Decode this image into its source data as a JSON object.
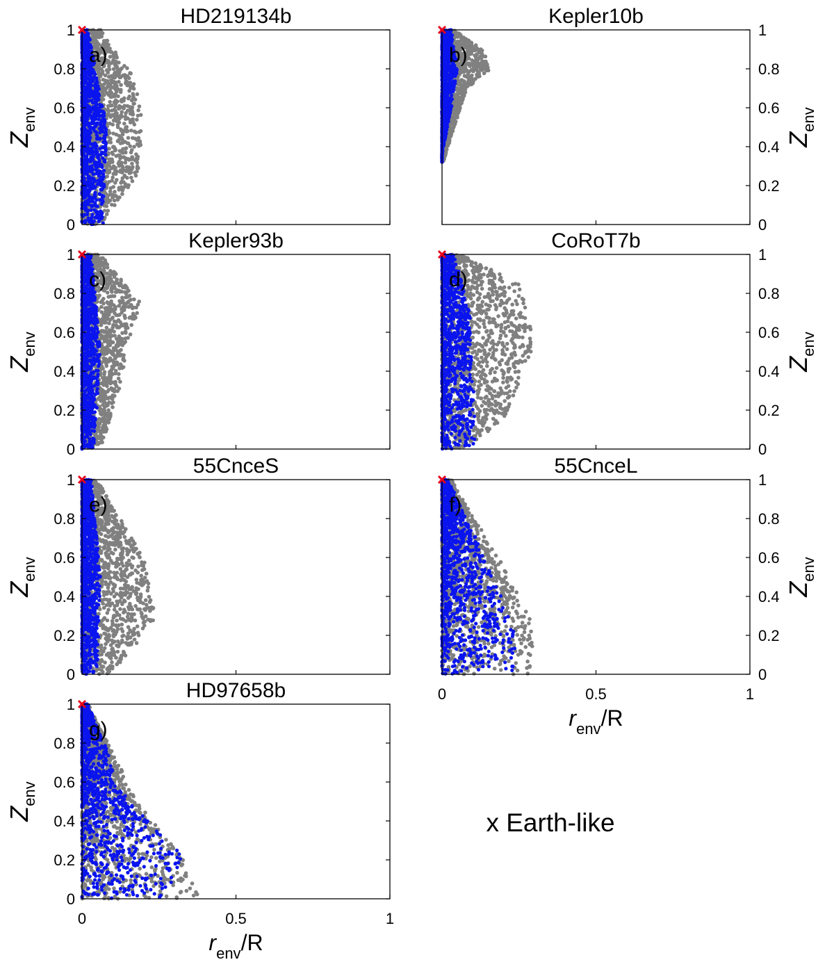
{
  "legend": {
    "text": "x Earth-like",
    "color": "#e8001c"
  },
  "colors": {
    "all_samples": "#808080",
    "constrained_samples": "#0a14ee",
    "marker": "#e8001c"
  },
  "axis_common": {
    "ylabel_main": "Z",
    "ylabel_sub": "env",
    "xlabel_main": "r",
    "xlabel_sub": "env",
    "xlabel_tail": "/R",
    "xlim": [
      0,
      1
    ],
    "ylim": [
      0,
      1
    ],
    "xticks": [
      "0",
      "0.5",
      "1"
    ],
    "yticks": [
      "0",
      "0.2",
      "0.4",
      "0.6",
      "0.8",
      "1"
    ]
  },
  "chart_data": [
    {
      "type": "scatter",
      "title": "HD219134b",
      "panel_label": "a)",
      "earth_like": [
        0,
        1
      ],
      "envelope": {
        "ymin": 0.0,
        "grey": [
          [
            0,
            0.06
          ],
          [
            0.25,
            0.18
          ],
          [
            0.5,
            0.2
          ],
          [
            0.75,
            0.17
          ],
          [
            1,
            0.06
          ]
        ],
        "blue": [
          [
            0,
            0.07
          ],
          [
            0.5,
            0.08
          ],
          [
            1,
            0.02
          ]
        ]
      }
    },
    {
      "type": "scatter",
      "title": "Kepler10b",
      "panel_label": "b)",
      "earth_like": [
        0,
        1
      ],
      "envelope": {
        "ymin": 0.32,
        "grey": [
          [
            0.32,
            0.004
          ],
          [
            0.5,
            0.04
          ],
          [
            0.7,
            0.08
          ],
          [
            0.8,
            0.16
          ],
          [
            0.9,
            0.13
          ],
          [
            1,
            0.04
          ]
        ],
        "blue": [
          [
            0.36,
            0.0
          ],
          [
            0.6,
            0.03
          ],
          [
            0.8,
            0.05
          ],
          [
            1,
            0.03
          ]
        ]
      }
    },
    {
      "type": "scatter",
      "title": "Kepler93b",
      "panel_label": "c)",
      "earth_like": [
        0,
        1
      ],
      "envelope": {
        "ymin": 0.0,
        "grey": [
          [
            0,
            0.06
          ],
          [
            0.3,
            0.12
          ],
          [
            0.6,
            0.16
          ],
          [
            0.75,
            0.19
          ],
          [
            1,
            0.06
          ]
        ],
        "blue": [
          [
            0,
            0.04
          ],
          [
            0.5,
            0.06
          ],
          [
            1,
            0.03
          ]
        ]
      }
    },
    {
      "type": "scatter",
      "title": "CoRoT7b",
      "panel_label": "d)",
      "earth_like": [
        0,
        1
      ],
      "envelope": {
        "ymin": 0.0,
        "grey": [
          [
            0,
            0.07
          ],
          [
            0.15,
            0.2
          ],
          [
            0.5,
            0.29
          ],
          [
            0.6,
            0.3
          ],
          [
            0.85,
            0.25
          ],
          [
            1,
            0.06
          ]
        ],
        "blue": [
          [
            0,
            0.11
          ],
          [
            0.4,
            0.1
          ],
          [
            0.7,
            0.09
          ],
          [
            1,
            0.04
          ]
        ]
      }
    },
    {
      "type": "scatter",
      "title": "55CnceS",
      "panel_label": "e)",
      "earth_like": [
        0,
        1
      ],
      "envelope": {
        "ymin": 0.0,
        "grey": [
          [
            0,
            0.09
          ],
          [
            0.2,
            0.2
          ],
          [
            0.3,
            0.24
          ],
          [
            0.6,
            0.2
          ],
          [
            1,
            0.05
          ]
        ],
        "blue": [
          [
            0,
            0.05
          ],
          [
            0.5,
            0.06
          ],
          [
            1,
            0.03
          ]
        ]
      }
    },
    {
      "type": "scatter",
      "title": "55CnceL",
      "panel_label": "f)",
      "earth_like": [
        0,
        1
      ],
      "envelope": {
        "ymin": 0.0,
        "grey": [
          [
            0,
            0.28
          ],
          [
            0.2,
            0.31
          ],
          [
            0.5,
            0.22
          ],
          [
            1,
            0.03
          ]
        ],
        "blue": [
          [
            0,
            0.23
          ],
          [
            0.2,
            0.24
          ],
          [
            0.5,
            0.17
          ],
          [
            1,
            0.02
          ]
        ]
      }
    },
    {
      "type": "scatter",
      "title": "HD97658b",
      "panel_label": "g)",
      "earth_like": [
        0,
        1
      ],
      "envelope": {
        "ymin": 0.0,
        "grey": [
          [
            0,
            0.38
          ],
          [
            0.2,
            0.33
          ],
          [
            0.5,
            0.18
          ],
          [
            1,
            0.02
          ]
        ],
        "blue": [
          [
            0,
            0.27
          ],
          [
            0.2,
            0.34
          ],
          [
            0.5,
            0.15
          ],
          [
            1,
            0.02
          ]
        ]
      }
    }
  ]
}
